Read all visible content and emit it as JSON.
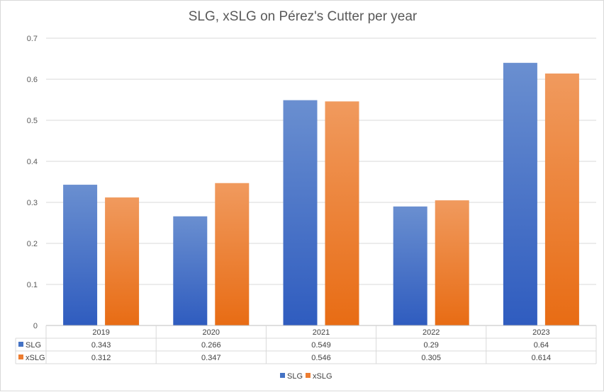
{
  "chart_data": {
    "type": "bar",
    "title": "SLG, xSLG on Pérez's Cutter per year",
    "categories": [
      "2019",
      "2020",
      "2021",
      "2022",
      "2023"
    ],
    "series": [
      {
        "name": "SLG",
        "values": [
          0.343,
          0.266,
          0.549,
          0.29,
          0.64
        ],
        "value_labels": [
          "0.343",
          "0.266",
          "0.549",
          "0.29",
          "0.64"
        ],
        "color": "#4472c4"
      },
      {
        "name": "xSLG",
        "values": [
          0.312,
          0.347,
          0.546,
          0.305,
          0.614
        ],
        "value_labels": [
          "0.312",
          "0.347",
          "0.546",
          "0.305",
          "0.614"
        ],
        "color": "#ed7d31"
      }
    ],
    "ylim": [
      0,
      0.7
    ],
    "yticks": [
      0,
      0.1,
      0.2,
      0.3,
      0.4,
      0.5,
      0.6,
      0.7
    ],
    "ytick_labels": [
      "0",
      "0.1",
      "0.2",
      "0.3",
      "0.4",
      "0.5",
      "0.6",
      "0.7"
    ],
    "grid": true,
    "data_table": true,
    "legend_position": "bottom"
  }
}
